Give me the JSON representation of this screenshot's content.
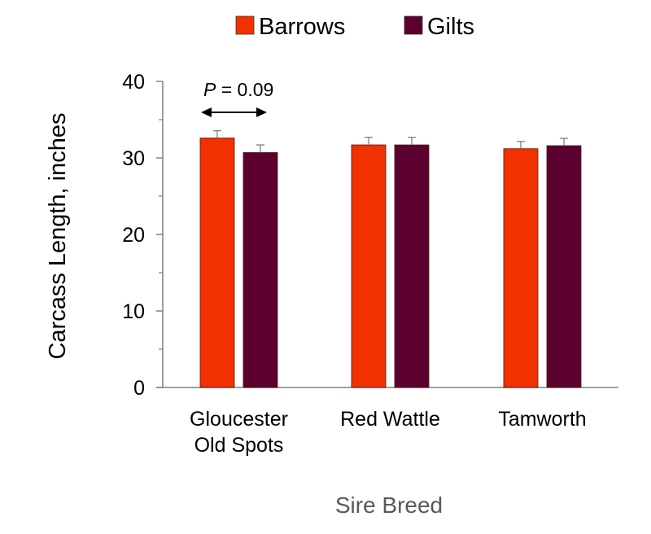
{
  "chart_data": {
    "type": "bar",
    "title": "",
    "xlabel": "Sire Breed",
    "ylabel": "Carcass Length, inches",
    "ylim": [
      0,
      40
    ],
    "yticks": [
      "0",
      "10",
      "20",
      "30",
      "40"
    ],
    "categories": [
      "Gloucester Old Spots",
      "Red Wattle",
      "Tamworth"
    ],
    "category_lines": [
      [
        "Gloucester",
        "Old Spots"
      ],
      [
        "Red Wattle"
      ],
      [
        "Tamworth"
      ]
    ],
    "series": [
      {
        "name": "Barrows",
        "color": "#f23000",
        "values": [
          32.6,
          31.7,
          31.2
        ],
        "errors": [
          0.95,
          1.0,
          0.95
        ]
      },
      {
        "name": "Gilts",
        "color": "#5c0030",
        "values": [
          30.7,
          31.7,
          31.6
        ],
        "errors": [
          1.0,
          1.0,
          0.95
        ]
      }
    ],
    "legend_position": "top-center",
    "annotation": {
      "p_label": "P",
      "p_value": " = 0.09",
      "category": "Gloucester Old Spots"
    }
  }
}
